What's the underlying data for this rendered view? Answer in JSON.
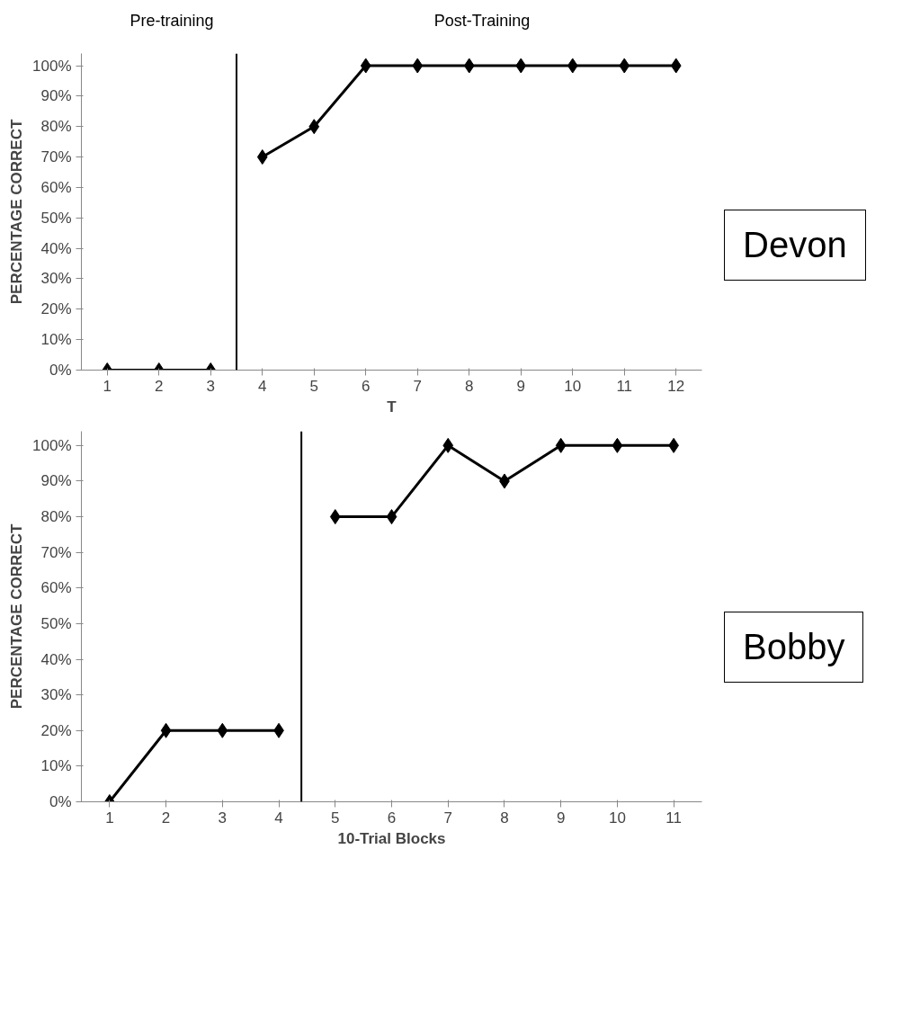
{
  "chart_data": [
    {
      "type": "line",
      "xlabel": "T",
      "ylabel": "PERCENTAGE CORRECT",
      "x": [
        1,
        2,
        3,
        4,
        5,
        6,
        7,
        8,
        9,
        10,
        11,
        12
      ],
      "series": [
        {
          "color": "#000000",
          "values": [
            0,
            0,
            0,
            null,
            null,
            null,
            null,
            null,
            null,
            null,
            null,
            null
          ]
        },
        {
          "color": "#000000",
          "values": [
            null,
            null,
            null,
            70,
            80,
            100,
            100,
            100,
            100,
            100,
            100,
            100
          ]
        }
      ],
      "xlim": [
        0.5,
        12.5
      ],
      "xticks": [
        1,
        2,
        3,
        4,
        5,
        6,
        7,
        8,
        9,
        10,
        11,
        12
      ],
      "ylim": [
        0,
        104
      ],
      "yticks": [
        {
          "value": 0,
          "label": "0%"
        },
        {
          "value": 10,
          "label": "10%"
        },
        {
          "value": 20,
          "label": "20%"
        },
        {
          "value": 30,
          "label": "30%"
        },
        {
          "value": 40,
          "label": "40%"
        },
        {
          "value": 50,
          "label": "50%"
        },
        {
          "value": 60,
          "label": "60%"
        },
        {
          "value": 70,
          "label": "70%"
        },
        {
          "value": 80,
          "label": "80%"
        },
        {
          "value": 90,
          "label": "90%"
        },
        {
          "value": 100,
          "label": "100%"
        }
      ],
      "ref_lines": [
        {
          "axis": "x",
          "value": 3.5,
          "color": "#000000"
        }
      ],
      "annotations": [
        "Pre-training",
        "Post-Training",
        "Devon"
      ],
      "marker": "diamond",
      "line_style": "solid"
    },
    {
      "type": "line",
      "xlabel": "10-Trial Blocks",
      "ylabel": "PERCENTAGE CORRECT",
      "x": [
        1,
        2,
        3,
        4,
        5,
        6,
        7,
        8,
        9,
        10,
        11
      ],
      "series": [
        {
          "color": "#000000",
          "values": [
            0,
            20,
            20,
            20,
            null,
            null,
            null,
            null,
            null,
            null,
            null
          ]
        },
        {
          "color": "#000000",
          "values": [
            null,
            null,
            null,
            null,
            80,
            80,
            100,
            90,
            100,
            100,
            100
          ]
        }
      ],
      "xlim": [
        0.5,
        11.5
      ],
      "xticks": [
        1,
        2,
        3,
        4,
        5,
        6,
        7,
        8,
        9,
        10,
        11
      ],
      "ylim": [
        0,
        104
      ],
      "yticks": [
        {
          "value": 0,
          "label": "0%"
        },
        {
          "value": 10,
          "label": "10%"
        },
        {
          "value": 20,
          "label": "20%"
        },
        {
          "value": 30,
          "label": "30%"
        },
        {
          "value": 40,
          "label": "40%"
        },
        {
          "value": 50,
          "label": "50%"
        },
        {
          "value": 60,
          "label": "60%"
        },
        {
          "value": 70,
          "label": "70%"
        },
        {
          "value": 80,
          "label": "80%"
        },
        {
          "value": 90,
          "label": "90%"
        },
        {
          "value": 100,
          "label": "100%"
        }
      ],
      "ref_lines": [
        {
          "axis": "x",
          "value": 4.4,
          "color": "#000000"
        }
      ],
      "annotations": [
        "Bobby"
      ],
      "marker": "diamond",
      "line_style": "solid"
    }
  ]
}
